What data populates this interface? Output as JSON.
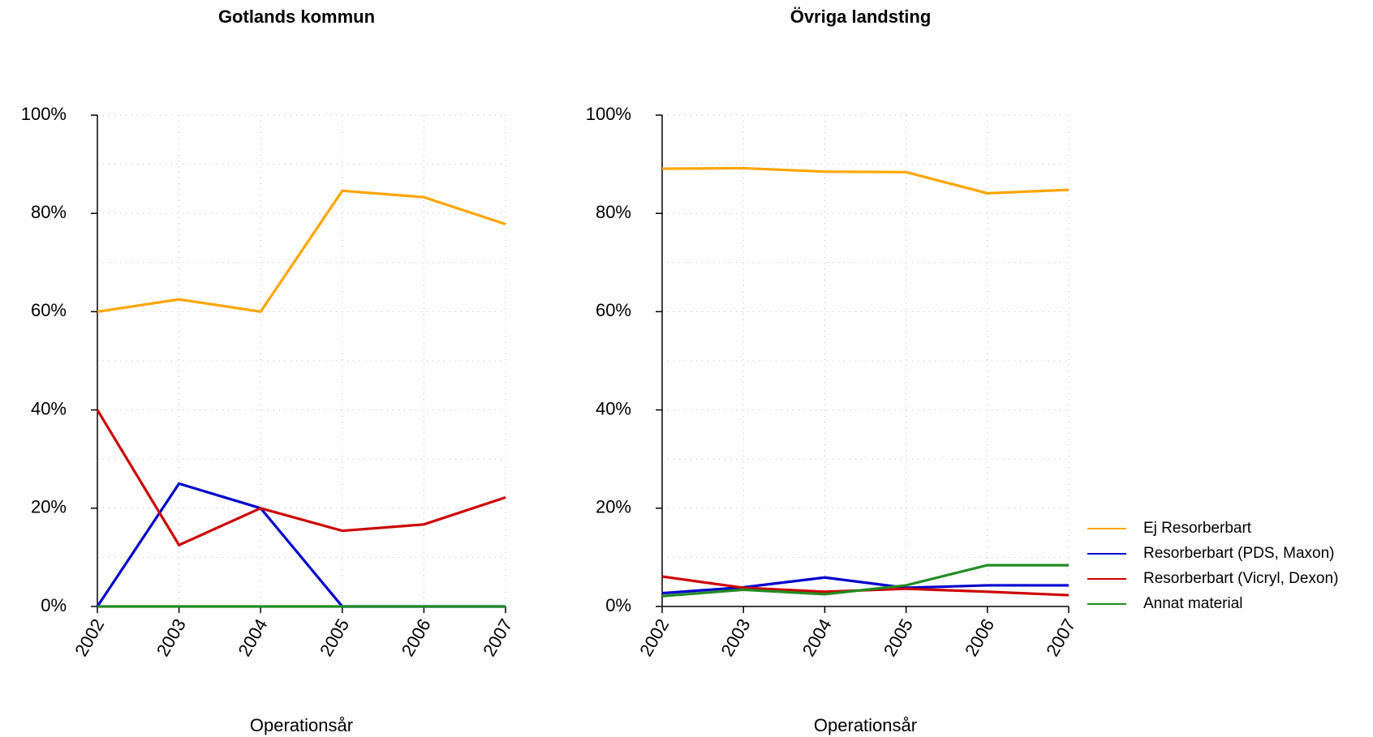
{
  "chart_data": [
    {
      "type": "line",
      "title": "Gotlands kommun",
      "x_label": "Operationsår",
      "x": [
        2002,
        2003,
        2004,
        2005,
        2006,
        2007
      ],
      "xlim": [
        2002,
        2007
      ],
      "xticks": [
        2002,
        2003,
        2004,
        2005,
        2006,
        2007
      ],
      "ylim": [
        0,
        100
      ],
      "yticks": [
        {
          "value": 0,
          "label": "0%"
        },
        {
          "value": 20,
          "label": "20%"
        },
        {
          "value": 40,
          "label": "40%"
        },
        {
          "value": 60,
          "label": "60%"
        },
        {
          "value": 80,
          "label": "80%"
        },
        {
          "value": 100,
          "label": "100%"
        }
      ],
      "minor_yticks": [
        10,
        30,
        50,
        70,
        90
      ],
      "grid": true,
      "series": [
        {
          "name": "Ej Resorberbart",
          "color": "#ffa500",
          "values": [
            60,
            62.5,
            60,
            84.6,
            83.3,
            77.8
          ]
        },
        {
          "name": "Resorberbart (PDS, Maxon)",
          "color": "#0000cd",
          "values": [
            0,
            25,
            20,
            0,
            0,
            0
          ]
        },
        {
          "name": "Resorberbart (Vicryl, Dexon)",
          "color": "#cd0000",
          "values": [
            40,
            12.5,
            20,
            15.4,
            16.7,
            22.2
          ]
        },
        {
          "name": "Annat material",
          "color": "#228b22",
          "values": [
            0,
            0,
            0,
            0,
            0,
            0
          ]
        }
      ]
    },
    {
      "type": "line",
      "title": "Övriga landsting",
      "x_label": "Operationsår",
      "x": [
        2002,
        2003,
        2004,
        2005,
        2006,
        2007
      ],
      "xlim": [
        2002,
        2007
      ],
      "xticks": [
        2002,
        2003,
        2004,
        2005,
        2006,
        2007
      ],
      "ylim": [
        0,
        100
      ],
      "yticks": [
        {
          "value": 0,
          "label": "0%"
        },
        {
          "value": 20,
          "label": "20%"
        },
        {
          "value": 40,
          "label": "40%"
        },
        {
          "value": 60,
          "label": "60%"
        },
        {
          "value": 80,
          "label": "80%"
        },
        {
          "value": 100,
          "label": "100%"
        }
      ],
      "minor_yticks": [
        10,
        30,
        50,
        70,
        90
      ],
      "grid": true,
      "legend": "bottom-right",
      "series": [
        {
          "name": "Ej Resorberbart",
          "color": "#ffa500",
          "values": [
            89.1,
            89.2,
            88.5,
            88.4,
            84.1,
            84.8
          ]
        },
        {
          "name": "Resorberbart (PDS, Maxon)",
          "color": "#0000cd",
          "values": [
            2.7,
            3.9,
            5.9,
            3.8,
            4.3,
            4.3
          ]
        },
        {
          "name": "Resorberbart (Vicryl, Dexon)",
          "color": "#cd0000",
          "values": [
            6.1,
            3.8,
            3.0,
            3.6,
            3.0,
            2.3
          ]
        },
        {
          "name": "Annat material",
          "color": "#228b22",
          "values": [
            2.1,
            3.4,
            2.5,
            4.3,
            8.4,
            8.4
          ]
        }
      ]
    }
  ]
}
